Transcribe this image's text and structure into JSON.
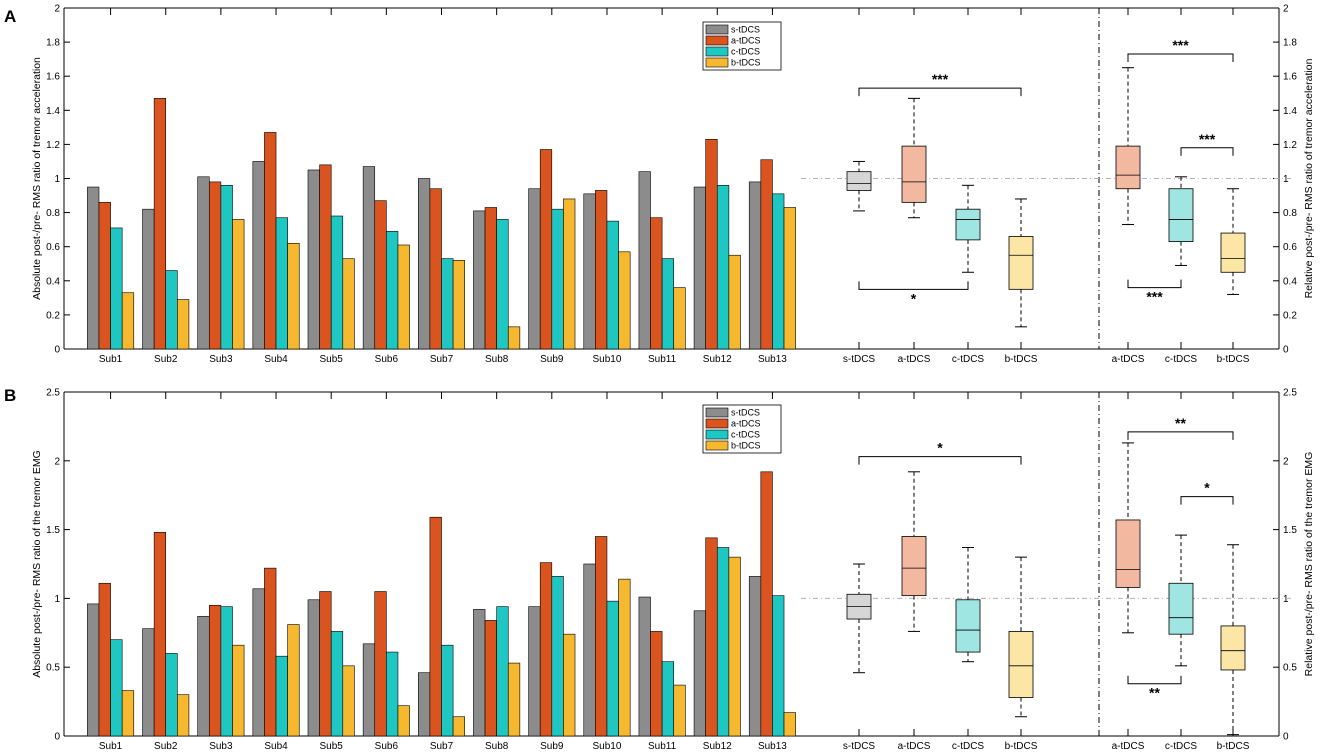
{
  "figure": {
    "panel_labels": [
      "A",
      "B"
    ]
  },
  "colors": {
    "s": "#8c8c8c",
    "a": "#d9541e",
    "c": "#1fc7c2",
    "b": "#f5b82e",
    "box_s": "#d6d6d6",
    "box_a": "#f3b9a0",
    "box_c": "#9fe5e2",
    "box_b": "#fbe6a6",
    "axis": "#000000",
    "refline": "#b3b3b3"
  },
  "chart_data": [
    {
      "id": "A-bars",
      "type": "bar",
      "ylabel": "Absolute post-/pre- RMS ratio of tremor acceleration",
      "ylim": [
        0,
        2
      ],
      "yticks": [
        "0",
        "0.2",
        "0.4",
        "0.6",
        "0.8",
        "1",
        "1.2",
        "1.4",
        "1.6",
        "1.8",
        "2"
      ],
      "categories": [
        "Sub1",
        "Sub2",
        "Sub3",
        "Sub4",
        "Sub5",
        "Sub6",
        "Sub7",
        "Sub8",
        "Sub9",
        "Sub10",
        "Sub11",
        "Sub12",
        "Sub13"
      ],
      "legend": [
        "s-tDCS",
        "a-tDCS",
        "c-tDCS",
        "b-tDCS"
      ],
      "series": [
        {
          "name": "s-tDCS",
          "values": [
            0.95,
            0.82,
            1.01,
            1.1,
            1.05,
            1.07,
            1.0,
            0.81,
            0.94,
            0.91,
            1.04,
            0.95,
            0.98
          ]
        },
        {
          "name": "a-tDCS",
          "values": [
            0.86,
            1.47,
            0.98,
            1.27,
            1.08,
            0.87,
            0.94,
            0.83,
            1.17,
            0.93,
            0.77,
            1.23,
            1.11
          ]
        },
        {
          "name": "c-tDCS",
          "values": [
            0.71,
            0.46,
            0.96,
            0.77,
            0.78,
            0.69,
            0.53,
            0.76,
            0.82,
            0.75,
            0.53,
            0.96,
            0.91
          ]
        },
        {
          "name": "b-tDCS",
          "values": [
            0.33,
            0.29,
            0.76,
            0.62,
            0.53,
            0.61,
            0.52,
            0.13,
            0.88,
            0.57,
            0.36,
            0.55,
            0.83
          ]
        }
      ]
    },
    {
      "id": "A-abs-box",
      "type": "box",
      "ylim": [
        0,
        2
      ],
      "reference": 1,
      "categories": [
        "s-tDCS",
        "a-tDCS",
        "c-tDCS",
        "b-tDCS"
      ],
      "boxes": [
        {
          "name": "s-tDCS",
          "min": 0.81,
          "q1": 0.93,
          "median": 0.97,
          "q3": 1.04,
          "max": 1.1
        },
        {
          "name": "a-tDCS",
          "min": 0.77,
          "q1": 0.86,
          "median": 0.98,
          "q3": 1.19,
          "max": 1.47
        },
        {
          "name": "c-tDCS",
          "min": 0.45,
          "q1": 0.64,
          "median": 0.76,
          "q3": 0.82,
          "max": 0.96
        },
        {
          "name": "b-tDCS",
          "min": 0.13,
          "q1": 0.35,
          "median": 0.55,
          "q3": 0.66,
          "max": 0.88
        }
      ],
      "significance": [
        {
          "from": "s-tDCS",
          "to": "b-tDCS",
          "label": "***",
          "side": "top",
          "y": 1.53
        },
        {
          "from": "s-tDCS",
          "to": "c-tDCS",
          "label": "*",
          "side": "bottom",
          "y": 0.35
        }
      ]
    },
    {
      "id": "A-rel-box",
      "type": "box",
      "ylabel": "Relative post-/pre- RMS ratio of tremor acceleration",
      "ylim": [
        0,
        2
      ],
      "yticks": [
        "0",
        "0.2",
        "0.4",
        "0.6",
        "0.8",
        "1",
        "1.2",
        "1.4",
        "1.6",
        "1.8",
        "2"
      ],
      "reference": 1,
      "categories": [
        "a-tDCS",
        "c-tDCS",
        "b-tDCS"
      ],
      "boxes": [
        {
          "name": "a-tDCS",
          "min": 0.73,
          "q1": 0.94,
          "median": 1.02,
          "q3": 1.19,
          "max": 1.65
        },
        {
          "name": "c-tDCS",
          "min": 0.49,
          "q1": 0.63,
          "median": 0.76,
          "q3": 0.94,
          "max": 1.01
        },
        {
          "name": "b-tDCS",
          "min": 0.32,
          "q1": 0.45,
          "median": 0.53,
          "q3": 0.68,
          "max": 0.94
        }
      ],
      "significance": [
        {
          "from": "a-tDCS",
          "to": "b-tDCS",
          "label": "***",
          "side": "top",
          "y": 1.73
        },
        {
          "from": "c-tDCS",
          "to": "b-tDCS",
          "label": "***",
          "side": "top",
          "y": 1.18
        },
        {
          "from": "a-tDCS",
          "to": "c-tDCS",
          "label": "***",
          "side": "bottom",
          "y": 0.36
        }
      ]
    },
    {
      "id": "B-bars",
      "type": "bar",
      "ylabel": "Absolute post-/pre- RMS ratio of the tremor EMG",
      "ylim": [
        0,
        2.5
      ],
      "yticks": [
        "0",
        "0.5",
        "1",
        "1.5",
        "2",
        "2.5"
      ],
      "categories": [
        "Sub1",
        "Sub2",
        "Sub3",
        "Sub4",
        "Sub5",
        "Sub6",
        "Sub7",
        "Sub8",
        "Sub9",
        "Sub10",
        "Sub11",
        "Sub12",
        "Sub13"
      ],
      "legend": [
        "s-tDCS",
        "a-tDCS",
        "c-tDCS",
        "b-tDCS"
      ],
      "series": [
        {
          "name": "s-tDCS",
          "values": [
            0.96,
            0.78,
            0.87,
            1.07,
            0.99,
            0.67,
            0.46,
            0.92,
            0.94,
            1.25,
            1.01,
            0.91,
            1.16
          ]
        },
        {
          "name": "a-tDCS",
          "values": [
            1.11,
            1.48,
            0.95,
            1.22,
            1.05,
            1.05,
            1.59,
            0.84,
            1.26,
            1.45,
            0.76,
            1.44,
            1.92
          ]
        },
        {
          "name": "c-tDCS",
          "values": [
            0.7,
            0.6,
            0.94,
            0.58,
            0.76,
            0.61,
            0.66,
            0.94,
            1.16,
            0.98,
            0.54,
            1.37,
            1.02
          ]
        },
        {
          "name": "b-tDCS",
          "values": [
            0.33,
            0.3,
            0.66,
            0.81,
            0.51,
            0.22,
            0.14,
            0.53,
            0.74,
            1.14,
            0.37,
            1.3,
            0.17
          ]
        }
      ]
    },
    {
      "id": "B-abs-box",
      "type": "box",
      "ylim": [
        0,
        2.5
      ],
      "reference": 1,
      "categories": [
        "s-tDCS",
        "a-tDCS",
        "c-tDCS",
        "b-tDCS"
      ],
      "boxes": [
        {
          "name": "s-tDCS",
          "min": 0.46,
          "q1": 0.85,
          "median": 0.94,
          "q3": 1.03,
          "max": 1.25
        },
        {
          "name": "a-tDCS",
          "min": 0.76,
          "q1": 1.02,
          "median": 1.22,
          "q3": 1.45,
          "max": 1.92
        },
        {
          "name": "c-tDCS",
          "min": 0.54,
          "q1": 0.61,
          "median": 0.77,
          "q3": 0.99,
          "max": 1.37
        },
        {
          "name": "b-tDCS",
          "min": 0.14,
          "q1": 0.28,
          "median": 0.51,
          "q3": 0.76,
          "max": 1.3
        }
      ],
      "significance": [
        {
          "from": "s-tDCS",
          "to": "b-tDCS",
          "label": "*",
          "side": "top",
          "y": 2.03
        }
      ]
    },
    {
      "id": "B-rel-box",
      "type": "box",
      "ylabel": "Relative post-/pre- RMS ratio of the tremor EMG",
      "ylim": [
        0,
        2.5
      ],
      "yticks": [
        "0",
        "0.5",
        "1",
        "1.5",
        "2",
        "2.5"
      ],
      "reference": 1,
      "categories": [
        "a-tDCS",
        "c-tDCS",
        "b-tDCS"
      ],
      "boxes": [
        {
          "name": "a-tDCS",
          "min": 0.75,
          "q1": 1.08,
          "median": 1.21,
          "q3": 1.57,
          "max": 2.13
        },
        {
          "name": "c-tDCS",
          "min": 0.51,
          "q1": 0.74,
          "median": 0.86,
          "q3": 1.11,
          "max": 1.46
        },
        {
          "name": "b-tDCS",
          "min": 0.01,
          "q1": 0.48,
          "median": 0.62,
          "q3": 0.8,
          "max": 1.39
        }
      ],
      "significance": [
        {
          "from": "a-tDCS",
          "to": "b-tDCS",
          "label": "**",
          "side": "top",
          "y": 2.21
        },
        {
          "from": "c-tDCS",
          "to": "b-tDCS",
          "label": "*",
          "side": "top",
          "y": 1.74
        },
        {
          "from": "a-tDCS",
          "to": "c-tDCS",
          "label": "**",
          "side": "bottom",
          "y": 0.38
        }
      ]
    }
  ]
}
